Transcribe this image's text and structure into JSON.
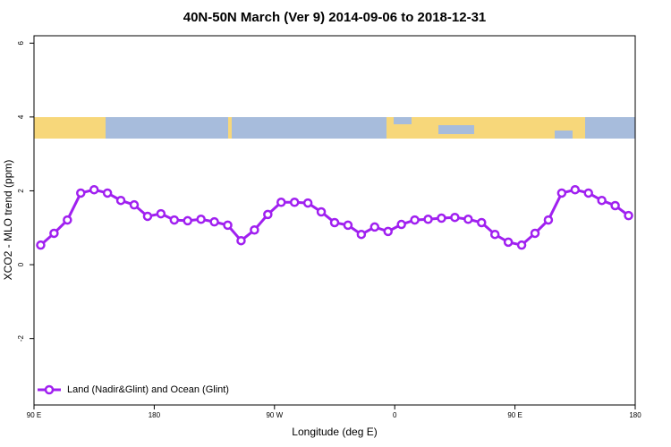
{
  "chart_data": {
    "type": "line",
    "title": "40N-50N March (Ver 9)   2014-09-06 to 2018-12-31",
    "x_label": "Longitude (deg E)",
    "y_label": "XCO2 - MLO trend (ppm)",
    "xlim": [
      90,
      540
    ],
    "ylim": [
      -3.8,
      6.2
    ],
    "xticks": [
      {
        "value": 90,
        "label": "90 E"
      },
      {
        "value": 180,
        "label": "180"
      },
      {
        "value": 270,
        "label": "90 W"
      },
      {
        "value": 360,
        "label": "0"
      },
      {
        "value": 450,
        "label": "90 E"
      },
      {
        "value": 540,
        "label": "180"
      }
    ],
    "yticks": [
      -2,
      0,
      2,
      4,
      6
    ],
    "legend": "bottom-left",
    "series": [
      {
        "name": "Land (Nadir&Glint) and Ocean (Glint)",
        "color": "#a020f0",
        "x": [
          95,
          105,
          115,
          125,
          135,
          145,
          155,
          165,
          175,
          185,
          195,
          205,
          215,
          225,
          235,
          245,
          255,
          265,
          275,
          285,
          295,
          305,
          315,
          325,
          335,
          345,
          355,
          365,
          375,
          385,
          395,
          405,
          415,
          425,
          435,
          445,
          455,
          465,
          475,
          485,
          495,
          505,
          515,
          525,
          535
        ],
        "values": [
          0.53,
          0.85,
          1.21,
          1.94,
          2.03,
          1.94,
          1.74,
          1.62,
          1.31,
          1.38,
          1.21,
          1.19,
          1.23,
          1.16,
          1.07,
          0.65,
          0.94,
          1.36,
          1.69,
          1.69,
          1.67,
          1.43,
          1.14,
          1.07,
          0.82,
          1.02,
          0.9,
          1.09,
          1.21,
          1.23,
          1.26,
          1.28,
          1.23,
          1.14,
          0.82,
          0.61,
          0.53,
          0.85,
          1.21,
          1.94,
          2.03,
          1.94,
          1.74,
          1.6,
          1.33
        ]
      }
    ]
  }
}
